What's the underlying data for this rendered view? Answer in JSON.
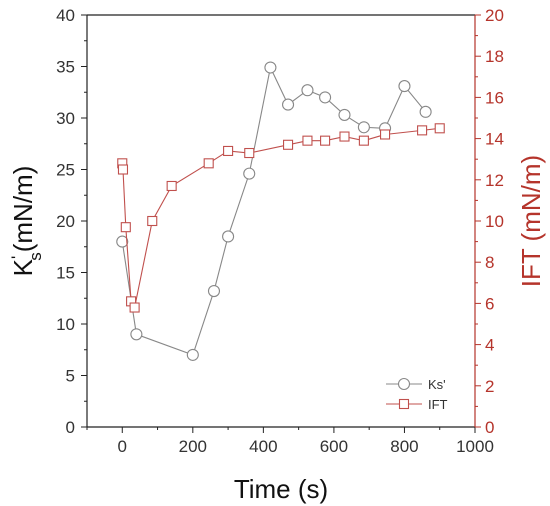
{
  "chart_data": {
    "type": "line",
    "xlabel": "Time (s)",
    "ylabel_left": "K's(mN/m)",
    "ylabel_left_parts": {
      "main": "K",
      "prime": "'",
      "sub": "s",
      "rest": "(mN/m)"
    },
    "ylabel_right": "IFT (mN/m)",
    "xlim": [
      -100,
      1000
    ],
    "ylim_left": [
      0,
      40
    ],
    "ylim_right": [
      0,
      20
    ],
    "xticks": [
      0,
      200,
      400,
      600,
      800,
      1000
    ],
    "yticks_left": [
      0,
      5,
      10,
      15,
      20,
      25,
      30,
      35,
      40
    ],
    "yticks_right": [
      0,
      2,
      4,
      6,
      8,
      10,
      12,
      14,
      16,
      18,
      20
    ],
    "grid": false,
    "legend_position": "bottom-right",
    "series": [
      {
        "name": "Ks'",
        "axis": "left",
        "color": "#888888",
        "marker": "circle",
        "x": [
          0,
          40,
          200,
          260,
          300,
          360,
          420,
          470,
          525,
          575,
          630,
          685,
          745,
          800,
          860
        ],
        "y": [
          18.0,
          9.0,
          7.0,
          13.2,
          18.5,
          24.6,
          34.9,
          31.3,
          32.7,
          32.0,
          30.3,
          29.1,
          29.0,
          33.1,
          30.6
        ]
      },
      {
        "name": "IFT",
        "axis": "right",
        "color": "#c0504d",
        "marker": "square",
        "x": [
          0,
          2,
          10,
          25,
          35,
          85,
          140,
          245,
          300,
          360,
          470,
          525,
          575,
          630,
          685,
          745,
          850,
          900
        ],
        "y": [
          12.8,
          12.5,
          9.7,
          6.1,
          5.8,
          10.0,
          11.7,
          12.8,
          13.4,
          13.3,
          13.7,
          13.9,
          13.9,
          14.1,
          13.9,
          14.2,
          14.4,
          14.5
        ]
      }
    ]
  }
}
